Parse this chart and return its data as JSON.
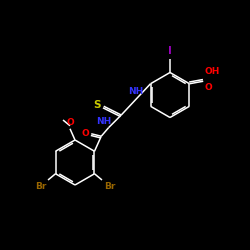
{
  "background_color": "#000000",
  "bond_color": "#ffffff",
  "label_colors": {
    "S": "#cccc00",
    "NH": "#3333ff",
    "O": "#ff0000",
    "OH": "#ff0000",
    "Br": "#996600",
    "I": "#9900bb",
    "C": "#ffffff"
  },
  "font_size": 6.5,
  "figsize": [
    2.5,
    2.5
  ],
  "dpi": 100
}
